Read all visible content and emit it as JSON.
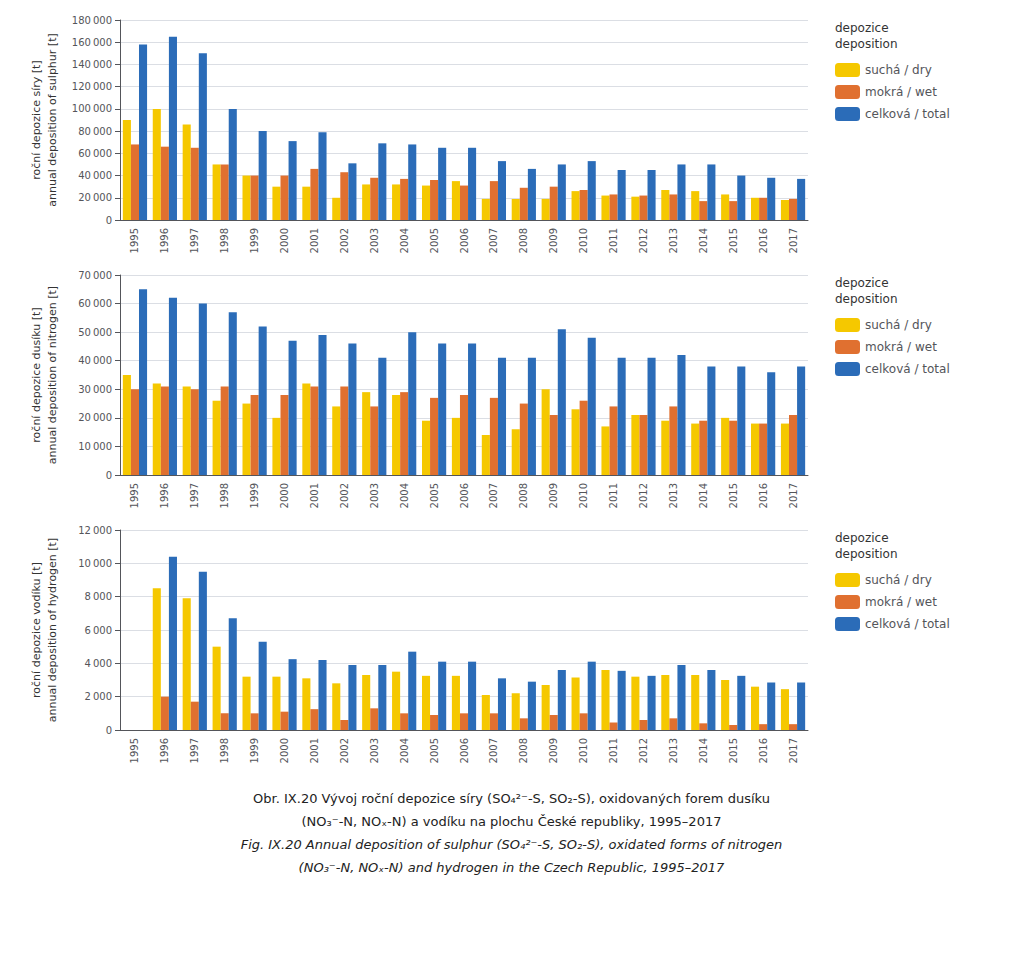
{
  "chart_data": [
    {
      "type": "bar",
      "ylabel": "roční depozice síry [t]\nannual deposition of sulphur [t]",
      "categories": [
        "1995",
        "1996",
        "1997",
        "1998",
        "1999",
        "2000",
        "2001",
        "2002",
        "2003",
        "2004",
        "2005",
        "2006",
        "2007",
        "2008",
        "2009",
        "2010",
        "2011",
        "2012",
        "2013",
        "2014",
        "2015",
        "2016",
        "2017"
      ],
      "series": [
        {
          "name": "suchá / dry",
          "color": "#F5C800",
          "values": [
            90000,
            100000,
            86000,
            50000,
            40000,
            30000,
            30000,
            20000,
            32000,
            32000,
            31000,
            35000,
            19000,
            19000,
            19000,
            26000,
            22000,
            21000,
            27000,
            26000,
            23000,
            20000,
            18000
          ]
        },
        {
          "name": "mokrá / wet",
          "color": "#E07030",
          "values": [
            68000,
            66000,
            65000,
            50000,
            40000,
            40000,
            46000,
            43000,
            38000,
            37000,
            36000,
            31000,
            35000,
            29000,
            30000,
            27000,
            23000,
            22000,
            23000,
            17000,
            17000,
            20000,
            19000
          ]
        },
        {
          "name": "celková / total",
          "color": "#2B6CB8",
          "values": [
            158000,
            165000,
            150000,
            100000,
            80000,
            71000,
            79000,
            51000,
            69000,
            68000,
            65000,
            65000,
            53000,
            46000,
            50000,
            53000,
            45000,
            45000,
            50000,
            50000,
            40000,
            38000,
            37000
          ]
        }
      ],
      "ylim": [
        0,
        180000
      ],
      "yticks": [
        0,
        {
          "value": 20000,
          "label": "20 000"
        },
        {
          "value": 40000,
          "label": "40 000"
        },
        {
          "value": 60000,
          "label": "60 000"
        },
        {
          "value": 80000,
          "label": "80 000"
        },
        {
          "value": 100000,
          "label": "100 000"
        },
        {
          "value": 120000,
          "label": "120 000"
        },
        {
          "value": 140000,
          "label": "140 000"
        },
        {
          "value": 160000,
          "label": "160 000"
        },
        {
          "value": 180000,
          "label": "180 000"
        }
      ],
      "grid": true,
      "legend": "right",
      "legend_title": "depozice\ndeposition"
    },
    {
      "type": "bar",
      "ylabel": "roční depozice dusíku [t]\nannual deposition of nitrogen [t]",
      "categories": [
        "1995",
        "1996",
        "1997",
        "1998",
        "1999",
        "2000",
        "2001",
        "2002",
        "2003",
        "2004",
        "2005",
        "2006",
        "2007",
        "2008",
        "2009",
        "2010",
        "2011",
        "2012",
        "2013",
        "2014",
        "2015",
        "2016",
        "2017"
      ],
      "series": [
        {
          "name": "suchá / dry",
          "color": "#F5C800",
          "values": [
            35000,
            32000,
            31000,
            26000,
            25000,
            20000,
            32000,
            24000,
            29000,
            28000,
            19000,
            20000,
            14000,
            16000,
            30000,
            23000,
            17000,
            21000,
            19000,
            18000,
            20000,
            18000,
            18000
          ]
        },
        {
          "name": "mokrá / wet",
          "color": "#E07030",
          "values": [
            30000,
            31000,
            30000,
            31000,
            28000,
            28000,
            31000,
            31000,
            24000,
            29000,
            27000,
            28000,
            27000,
            25000,
            21000,
            26000,
            24000,
            21000,
            24000,
            19000,
            19000,
            18000,
            21000
          ]
        },
        {
          "name": "celková / total",
          "color": "#2B6CB8",
          "values": [
            65000,
            62000,
            60000,
            57000,
            52000,
            47000,
            49000,
            46000,
            41000,
            50000,
            46000,
            46000,
            41000,
            41000,
            51000,
            48000,
            41000,
            41000,
            42000,
            38000,
            38000,
            36000,
            38000
          ]
        }
      ],
      "ylim": [
        0,
        70000
      ],
      "yticks": [
        0,
        {
          "value": 10000,
          "label": "10 000"
        },
        {
          "value": 20000,
          "label": "20 000"
        },
        {
          "value": 30000,
          "label": "30 000"
        },
        {
          "value": 40000,
          "label": "40 000"
        },
        {
          "value": 50000,
          "label": "50 000"
        },
        {
          "value": 60000,
          "label": "60 000"
        },
        {
          "value": 70000,
          "label": "70 000"
        }
      ],
      "grid": true,
      "legend": "right",
      "legend_title": "depozice\ndeposition"
    },
    {
      "type": "bar",
      "ylabel": "roční depozice vodíku [t]\nannual deposition of hydrogen [t]",
      "categories": [
        "1995",
        "1996",
        "1997",
        "1998",
        "1999",
        "2000",
        "2001",
        "2002",
        "2003",
        "2004",
        "2005",
        "2006",
        "2007",
        "2008",
        "2009",
        "2010",
        "2011",
        "2012",
        "2013",
        "2014",
        "2015",
        "2016",
        "2017"
      ],
      "series": [
        {
          "name": "suchá / dry",
          "color": "#F5C800",
          "values": [
            0,
            8500,
            7900,
            5000,
            3200,
            3200,
            3100,
            2800,
            3300,
            3500,
            3250,
            3250,
            2100,
            2200,
            2700,
            3150,
            3600,
            3200,
            3300,
            3300,
            3000,
            2600,
            2450
          ]
        },
        {
          "name": "mokrá / wet",
          "color": "#E07030",
          "values": [
            0,
            2000,
            1700,
            1000,
            1000,
            1100,
            1250,
            600,
            1300,
            1000,
            900,
            1000,
            1000,
            700,
            900,
            1000,
            450,
            600,
            700,
            400,
            300,
            350,
            350
          ]
        },
        {
          "name": "celková / total",
          "color": "#2B6CB8",
          "values": [
            0,
            10400,
            9500,
            6700,
            5300,
            4250,
            4200,
            3900,
            3900,
            4700,
            4100,
            4100,
            3100,
            2900,
            3600,
            4100,
            3550,
            3250,
            3900,
            3600,
            3250,
            2850,
            2850
          ]
        }
      ],
      "ylim": [
        0,
        12000
      ],
      "yticks": [
        0,
        {
          "value": 2000,
          "label": "2 000"
        },
        {
          "value": 4000,
          "label": "4 000"
        },
        {
          "value": 6000,
          "label": "6 000"
        },
        {
          "value": 8000,
          "label": "8 000"
        },
        {
          "value": 10000,
          "label": "10 000"
        },
        {
          "value": 12000,
          "label": "12 000"
        }
      ],
      "grid": true,
      "legend": "right",
      "legend_title": "depozice\ndeposition",
      "annotations": [
        "Obr. IX.20 Vývoj roční depozice síry (SO₄²⁻-S, SO₂-S), oxidovaných forem dusíku",
        "(NO₃⁻-N, NOₓ-N) a vodíku na plochu České republiky, 1995–2017",
        "Fig. IX.20 Annual deposition of sulphur (SO₄²⁻-S, SO₂-S), oxidated forms of nitrogen",
        "(NO₃⁻-N, NOₓ-N) and hydrogen in the Czech Republic, 1995–2017"
      ]
    }
  ]
}
